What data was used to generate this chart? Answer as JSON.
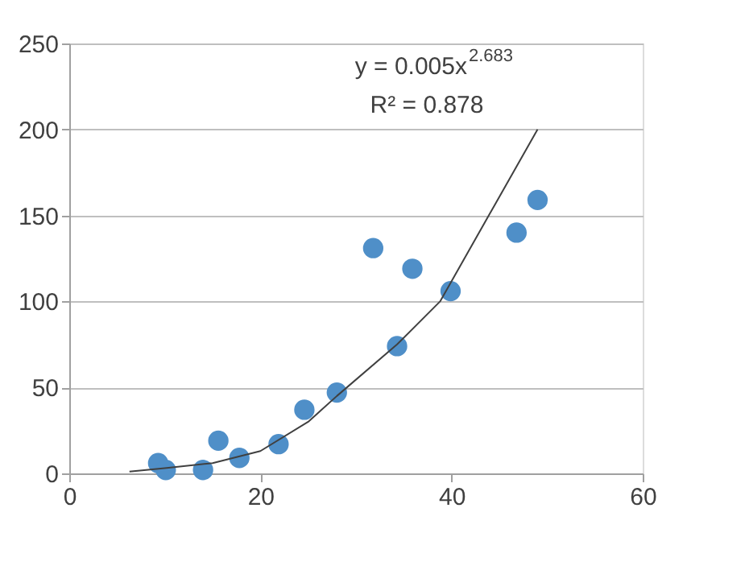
{
  "chart_data": {
    "type": "scatter",
    "xlim": [
      0,
      60
    ],
    "ylim": [
      0,
      250
    ],
    "xticks": [
      0,
      20,
      40,
      60
    ],
    "yticks": [
      0,
      50,
      100,
      150,
      200,
      250
    ],
    "grid": "y",
    "series": [
      {
        "color": "#4f8fc8",
        "marker": "circle",
        "x": [
          9.3,
          10.1,
          14.0,
          15.6,
          17.8,
          21.9,
          24.6,
          28.0,
          31.8,
          34.3,
          35.9,
          39.9,
          46.8,
          49.0
        ],
        "values": [
          6,
          2,
          2,
          19,
          9,
          17,
          37,
          47,
          131,
          74,
          119,
          106,
          140,
          159
        ]
      },
      {
        "type": "line",
        "color": "#404040",
        "line_style": "solid",
        "x": [
          6.3,
          10,
          15,
          20,
          25,
          28,
          34.3,
          38.8,
          43.9,
          49
        ],
        "values": [
          1,
          3,
          6,
          13,
          30,
          45,
          75,
          100,
          150,
          200
        ]
      }
    ],
    "annotations": [
      "y = 0.005x$^{2.683}$",
      "R² = 0.878"
    ]
  }
}
